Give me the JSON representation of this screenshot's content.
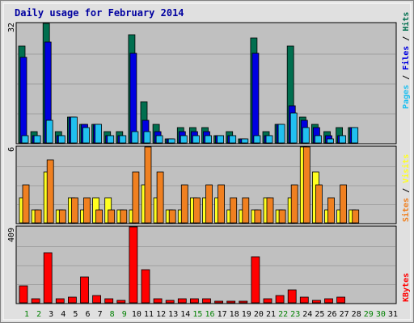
{
  "title": "Daily usage for February 2014",
  "colors": {
    "hits": "#006f4f",
    "files": "#0000e0",
    "pages": "#20c0f0",
    "visits": "#ffff20",
    "sites": "#f08020",
    "kbytes": "#ff0000",
    "panel_bg": "#c0c0c0",
    "frame": "#e0e0e0",
    "title": "#0000a0",
    "weekday_label": "#006f4f",
    "weekend_label": "#008000"
  },
  "chart_data": [
    {
      "type": "bar",
      "panel": "top",
      "ylabel_max": "32",
      "ylim": [
        0,
        32
      ],
      "legend": [
        "Pages",
        "Files",
        "Hits"
      ],
      "categories": [
        "1",
        "2",
        "3",
        "4",
        "5",
        "6",
        "7",
        "8",
        "9",
        "10",
        "11",
        "12",
        "13",
        "14",
        "15",
        "16",
        "17",
        "18",
        "19",
        "20",
        "21",
        "22",
        "23",
        "24",
        "25",
        "26",
        "27",
        "28",
        "29",
        "30",
        "31"
      ],
      "series": [
        {
          "name": "Hits",
          "values": [
            26,
            3,
            32,
            3,
            7,
            5,
            5,
            3,
            3,
            29,
            11,
            5,
            1,
            4,
            4,
            4,
            2,
            3,
            1,
            28,
            3,
            5,
            26,
            7,
            5,
            3,
            4,
            4,
            0,
            0,
            0
          ]
        },
        {
          "name": "Files",
          "values": [
            23,
            2,
            27,
            2,
            7,
            5,
            5,
            2,
            2,
            24,
            6,
            3,
            1,
            3,
            3,
            3,
            2,
            2,
            1,
            24,
            2,
            5,
            10,
            6,
            4,
            2,
            2,
            4,
            0,
            0,
            0
          ]
        },
        {
          "name": "Pages",
          "values": [
            2,
            2,
            6,
            2,
            7,
            4,
            5,
            2,
            2,
            3,
            3,
            2,
            1,
            2,
            2,
            2,
            2,
            2,
            1,
            2,
            2,
            5,
            8,
            4,
            2,
            1,
            2,
            4,
            0,
            0,
            0
          ]
        }
      ]
    },
    {
      "type": "bar",
      "panel": "middle",
      "ylabel_max": "6",
      "ylim": [
        0,
        6
      ],
      "legend": [
        "Sites",
        "Visits"
      ],
      "categories": [
        "1",
        "2",
        "3",
        "4",
        "5",
        "6",
        "7",
        "8",
        "9",
        "10",
        "11",
        "12",
        "13",
        "14",
        "15",
        "16",
        "17",
        "18",
        "19",
        "20",
        "21",
        "22",
        "23",
        "24",
        "25",
        "26",
        "27",
        "28",
        "29",
        "30",
        "31"
      ],
      "series": [
        {
          "name": "Visits",
          "values": [
            2,
            1,
            4,
            1,
            2,
            1,
            2,
            2,
            1,
            1,
            3,
            2,
            1,
            1,
            2,
            2,
            2,
            1,
            1,
            1,
            2,
            1,
            2,
            6,
            4,
            1,
            1,
            1,
            0,
            0,
            0
          ]
        },
        {
          "name": "Sites",
          "values": [
            3,
            1,
            5,
            1,
            2,
            2,
            1,
            1,
            1,
            4,
            6,
            4,
            1,
            3,
            2,
            3,
            3,
            2,
            2,
            1,
            2,
            1,
            3,
            6,
            3,
            2,
            3,
            1,
            0,
            0,
            0
          ]
        }
      ]
    },
    {
      "type": "bar",
      "panel": "bottom",
      "ylabel_max": "409",
      "ylim": [
        0,
        409
      ],
      "legend": [
        "KBytes"
      ],
      "categories": [
        "1",
        "2",
        "3",
        "4",
        "5",
        "6",
        "7",
        "8",
        "9",
        "10",
        "11",
        "12",
        "13",
        "14",
        "15",
        "16",
        "17",
        "18",
        "19",
        "20",
        "21",
        "22",
        "23",
        "24",
        "25",
        "26",
        "27",
        "28",
        "29",
        "30",
        "31"
      ],
      "series": [
        {
          "name": "KBytes",
          "values": [
            90,
            20,
            270,
            20,
            30,
            140,
            40,
            20,
            15,
            409,
            180,
            20,
            15,
            20,
            20,
            20,
            10,
            10,
            10,
            250,
            20,
            40,
            70,
            30,
            15,
            20,
            30,
            0,
            0,
            0,
            0
          ]
        }
      ]
    }
  ],
  "weekend_days": [
    "1",
    "2",
    "8",
    "9",
    "15",
    "16",
    "22",
    "23",
    "29",
    "30"
  ]
}
